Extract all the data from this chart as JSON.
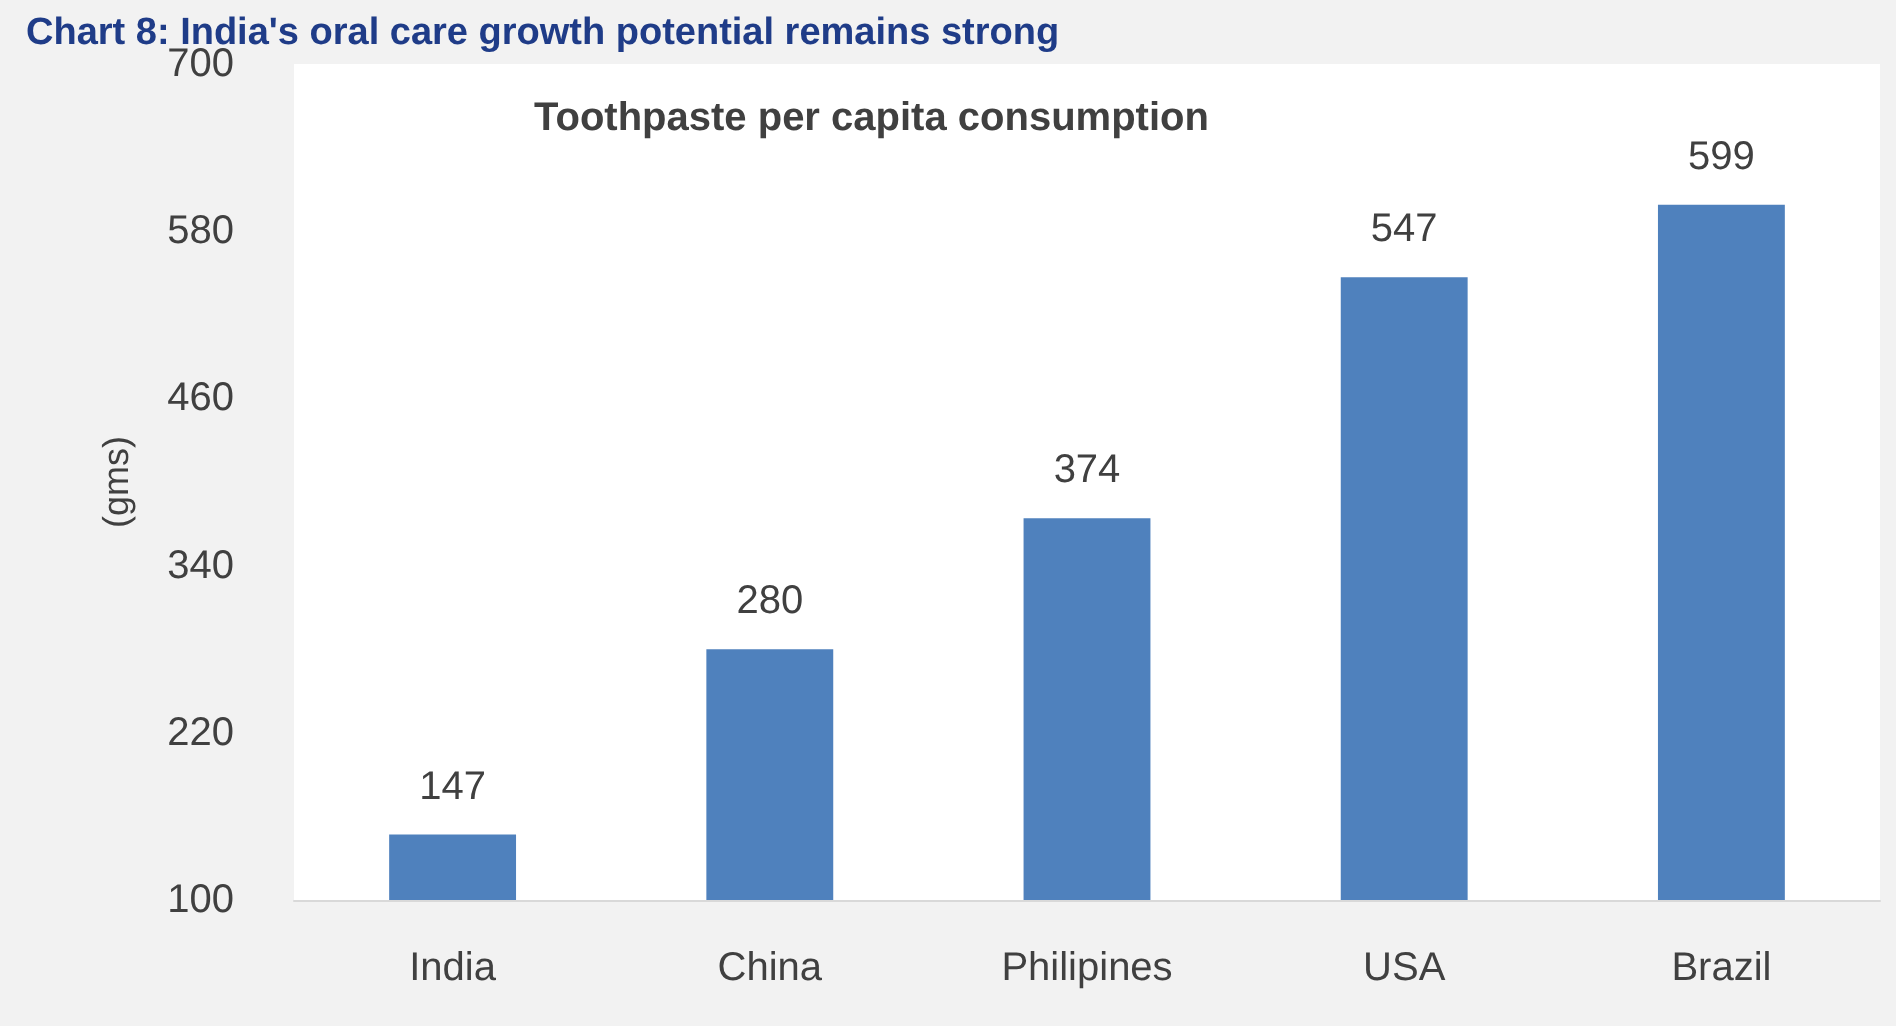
{
  "chart_data": {
    "type": "bar",
    "title": "Chart 8: India's oral care growth potential remains strong",
    "subtitle": "Toothpaste per capita consumption",
    "ylabel": "(gms)",
    "categories": [
      "India",
      "China",
      "Philipines",
      "USA",
      "Brazil"
    ],
    "values": [
      147,
      280,
      374,
      547,
      599
    ],
    "color": "#4f81bd",
    "ylim": [
      100,
      700
    ],
    "yticks": [
      100,
      220,
      340,
      460,
      580,
      700
    ],
    "grid": false,
    "data_labels": true
  }
}
